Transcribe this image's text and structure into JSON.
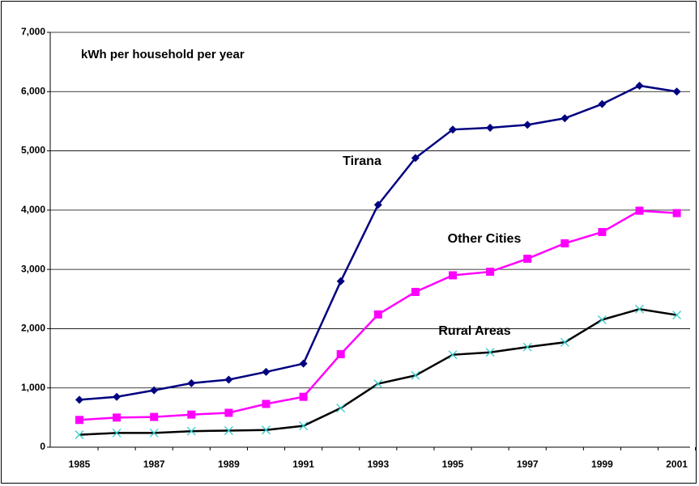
{
  "chart_data": {
    "type": "line",
    "title": "kWh per household per year",
    "categories": [
      "1985",
      null,
      "1987",
      null,
      "1989",
      null,
      "1991",
      null,
      "1993",
      null,
      "1995",
      null,
      "1997",
      null,
      "1999",
      null,
      "2001"
    ],
    "series": [
      {
        "name": "Tirana",
        "color": "#000080",
        "marker": "diamond",
        "marker_color": "#000080",
        "values": [
          800,
          850,
          960,
          1080,
          1140,
          1270,
          1410,
          2800,
          4090,
          4880,
          5360,
          5390,
          5440,
          5550,
          5790,
          6100,
          6000
        ]
      },
      {
        "name": "Other Cities",
        "color": "#ff00ff",
        "marker": "square",
        "marker_color": "#ff00ff",
        "values": [
          460,
          500,
          510,
          550,
          580,
          730,
          850,
          1570,
          2240,
          2620,
          2900,
          2960,
          3180,
          3440,
          3630,
          3990,
          3950
        ]
      },
      {
        "name": "Rural Areas",
        "color": "#000000",
        "marker": "x",
        "marker_color": "#33cccc",
        "values": [
          210,
          240,
          240,
          270,
          280,
          290,
          360,
          660,
          1070,
          1210,
          1560,
          1600,
          1690,
          1770,
          2150,
          2330,
          2230
        ]
      }
    ],
    "ylim": [
      0,
      7000
    ],
    "yticks": [
      0,
      {
        "value": 1000,
        "label": "1,000"
      },
      {
        "value": 2000,
        "label": "2,000"
      },
      {
        "value": 3000,
        "label": "3,000"
      },
      {
        "value": 4000,
        "label": "4,000"
      },
      {
        "value": 5000,
        "label": "5,000"
      },
      {
        "value": 6000,
        "label": "6,000"
      },
      {
        "value": 7000,
        "label": "7,000"
      }
    ],
    "grid": true
  }
}
